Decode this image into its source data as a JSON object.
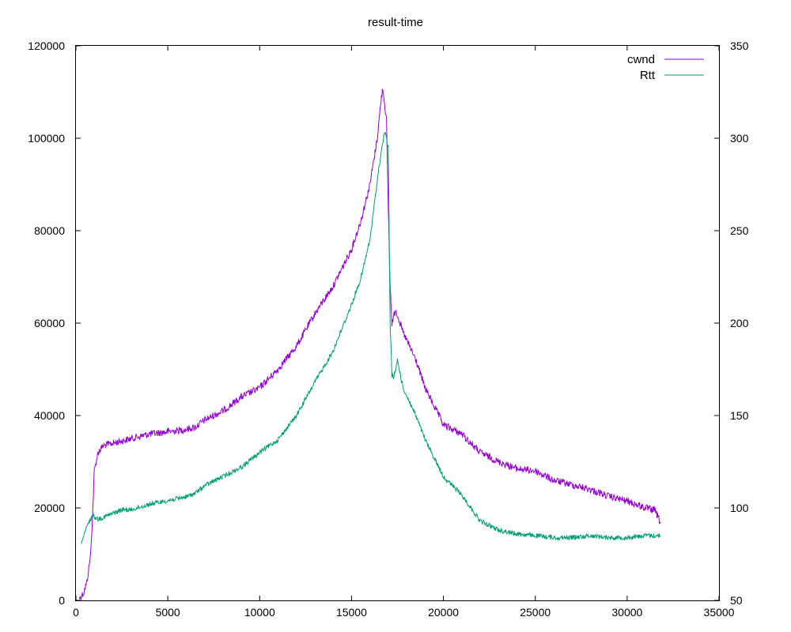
{
  "chart_data": {
    "type": "line",
    "title": "result-time",
    "xlabel": "",
    "ylabel": "",
    "y2label": "",
    "xlim": [
      0,
      35000
    ],
    "ylim": [
      0,
      120000
    ],
    "y2lim": [
      50,
      350
    ],
    "xticks": [
      0,
      5000,
      10000,
      15000,
      20000,
      25000,
      30000,
      35000
    ],
    "yticks": [
      0,
      20000,
      40000,
      60000,
      80000,
      100000,
      120000
    ],
    "y2ticks": [
      50,
      100,
      150,
      200,
      250,
      300,
      350
    ],
    "grid": false,
    "legend_position": "top-right",
    "series": [
      {
        "name": "cwnd",
        "axis": "y",
        "color": "#9400d3",
        "points": [
          [
            200,
            500
          ],
          [
            400,
            1500
          ],
          [
            600,
            4000
          ],
          [
            800,
            10000
          ],
          [
            900,
            18000
          ],
          [
            1000,
            28000
          ],
          [
            1200,
            32000
          ],
          [
            1500,
            33500
          ],
          [
            2000,
            34000
          ],
          [
            3000,
            35000
          ],
          [
            4000,
            36000
          ],
          [
            5000,
            36500
          ],
          [
            6000,
            37000
          ],
          [
            6500,
            37500
          ],
          [
            7000,
            39000
          ],
          [
            8000,
            41000
          ],
          [
            9000,
            44000
          ],
          [
            10000,
            46000
          ],
          [
            11000,
            50000
          ],
          [
            12000,
            55000
          ],
          [
            13000,
            62000
          ],
          [
            14000,
            68000
          ],
          [
            15000,
            76000
          ],
          [
            15500,
            82000
          ],
          [
            16000,
            90000
          ],
          [
            16400,
            100000
          ],
          [
            16600,
            108000
          ],
          [
            16700,
            111000
          ],
          [
            16900,
            104000
          ],
          [
            17000,
            85000
          ],
          [
            17100,
            68000
          ],
          [
            17200,
            60000
          ],
          [
            17400,
            63000
          ],
          [
            17800,
            58000
          ],
          [
            18500,
            52000
          ],
          [
            19000,
            46000
          ],
          [
            20000,
            38000
          ],
          [
            21000,
            36000
          ],
          [
            22000,
            32000
          ],
          [
            23000,
            30000
          ],
          [
            24000,
            28500
          ],
          [
            25000,
            28000
          ],
          [
            26000,
            26000
          ],
          [
            27000,
            25000
          ],
          [
            28000,
            24000
          ],
          [
            29000,
            22500
          ],
          [
            30000,
            21500
          ],
          [
            31000,
            20000
          ],
          [
            31500,
            19500
          ],
          [
            31800,
            17000
          ]
        ]
      },
      {
        "name": "Rtt",
        "axis": "y2",
        "color": "#009e73",
        "points": [
          [
            300,
            81
          ],
          [
            600,
            90
          ],
          [
            900,
            96
          ],
          [
            1200,
            94
          ],
          [
            1500,
            95
          ],
          [
            2000,
            97
          ],
          [
            2500,
            99
          ],
          [
            3000,
            99
          ],
          [
            4000,
            102
          ],
          [
            5000,
            104
          ],
          [
            6000,
            106
          ],
          [
            6500,
            108
          ],
          [
            7000,
            112
          ],
          [
            8000,
            117
          ],
          [
            9000,
            122
          ],
          [
            10000,
            130
          ],
          [
            11000,
            137
          ],
          [
            12000,
            150
          ],
          [
            13000,
            168
          ],
          [
            14000,
            185
          ],
          [
            15000,
            210
          ],
          [
            15500,
            224
          ],
          [
            16000,
            245
          ],
          [
            16500,
            285
          ],
          [
            16800,
            304
          ],
          [
            17000,
            295
          ],
          [
            17100,
            200
          ],
          [
            17200,
            172
          ],
          [
            17300,
            170
          ],
          [
            17500,
            180
          ],
          [
            17800,
            165
          ],
          [
            18500,
            150
          ],
          [
            19000,
            137
          ],
          [
            20000,
            117
          ],
          [
            21000,
            107
          ],
          [
            21500,
            100
          ],
          [
            22000,
            93
          ],
          [
            23000,
            88
          ],
          [
            24000,
            86
          ],
          [
            25000,
            85
          ],
          [
            26000,
            84
          ],
          [
            27000,
            84
          ],
          [
            28000,
            85
          ],
          [
            29000,
            84
          ],
          [
            30000,
            84
          ],
          [
            31000,
            85
          ],
          [
            31800,
            85
          ]
        ]
      }
    ]
  }
}
